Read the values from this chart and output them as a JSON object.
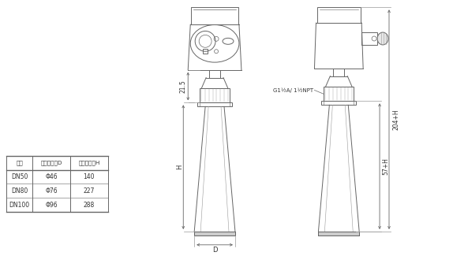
{
  "bg_color": "#ffffff",
  "line_color": "#666666",
  "line_width": 0.7,
  "table": {
    "headers": [
      "法兰",
      "喇叭口直径D",
      "喇叭口高度H"
    ],
    "rows": [
      [
        "DN50",
        "Φ46",
        "140"
      ],
      [
        "DN80",
        "Φ76",
        "227"
      ],
      [
        "DN100",
        "Φ96",
        "288"
      ]
    ]
  },
  "dim_215": "21.5",
  "dim_H": "H",
  "dim_D": "D",
  "dim_204H": "204+H",
  "dim_57H": "57+H",
  "dim_thread": "G1½A/ 1½NPT"
}
